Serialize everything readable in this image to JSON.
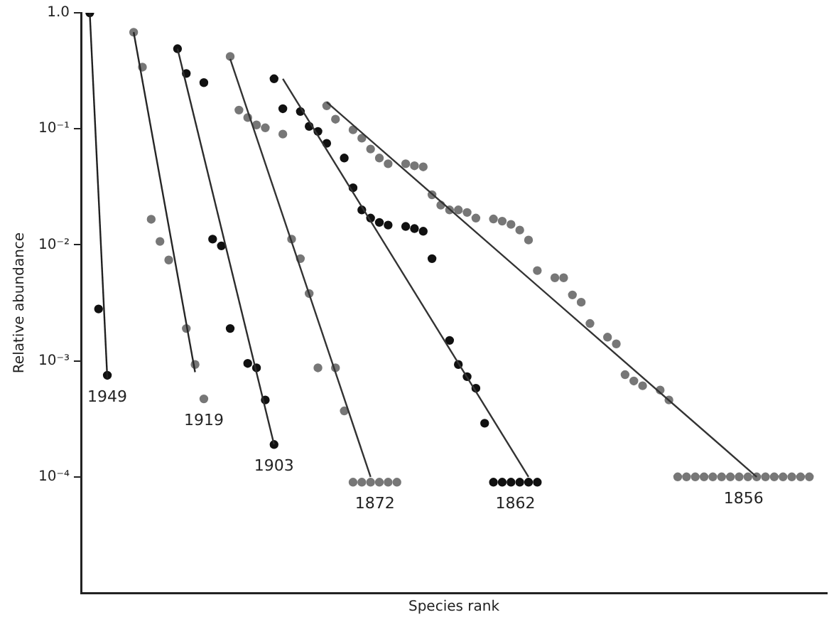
{
  "chart_data": {
    "type": "scatter",
    "xlabel": "Species rank",
    "ylabel": "Relative abundance",
    "log": true,
    "grid": false,
    "legend": false,
    "tick_labels": "y",
    "marker": "circle",
    "ylim": [
      1e-05,
      1
    ],
    "yticks": [
      {
        "value": 0.0001,
        "label": "10⁻⁴"
      },
      {
        "value": 0.001,
        "label": "10⁻³"
      },
      {
        "value": 0.01,
        "label": "10⁻²"
      },
      {
        "value": 0.1,
        "label": "10⁻¹"
      },
      {
        "value": 1,
        "label": "1.0"
      }
    ],
    "categories": [
      null,
      null,
      null,
      null,
      null,
      null,
      null,
      null,
      null,
      null,
      null,
      null,
      null,
      null,
      null,
      null,
      null,
      null,
      null,
      null,
      null,
      null,
      null,
      null,
      null,
      null,
      null,
      null,
      null,
      null,
      null,
      null,
      null,
      null,
      null,
      null,
      null,
      null,
      null,
      null,
      null,
      null,
      null,
      null,
      null,
      null,
      null,
      null,
      null,
      null,
      null,
      null,
      null,
      null,
      null,
      null,
      null,
      null,
      null,
      null,
      null,
      null,
      null,
      null,
      null,
      null,
      null,
      null,
      null,
      null,
      null,
      null,
      null,
      null,
      null,
      null,
      null,
      null,
      null,
      null,
      null,
      null,
      null,
      null,
      null,
      null
    ],
    "series": [
      {
        "name": "1949",
        "color": "#111111",
        "values": [
          null,
          1.0,
          0.0028,
          0.00075,
          null,
          null,
          null,
          null,
          null,
          null,
          null,
          null,
          null,
          null,
          null,
          null,
          null,
          null,
          null,
          null,
          null,
          null,
          null,
          null,
          null,
          null,
          null,
          null,
          null,
          null,
          null,
          null,
          null,
          null,
          null,
          null,
          null,
          null,
          null,
          null,
          null,
          null,
          null,
          null,
          null,
          null,
          null,
          null,
          null,
          null,
          null,
          null,
          null,
          null,
          null,
          null,
          null,
          null,
          null,
          null,
          null,
          null,
          null,
          null,
          null,
          null,
          null,
          null,
          null,
          null,
          null,
          null,
          null,
          null,
          null,
          null,
          null,
          null,
          null,
          null,
          null,
          null,
          null,
          null,
          null,
          null
        ]
      },
      {
        "type": "line",
        "color": "#202020",
        "marker": "none",
        "values": [
          null,
          1.0,
          null,
          0.0007,
          null,
          null,
          null,
          null,
          null,
          null,
          null,
          null,
          null,
          null,
          null,
          null,
          null,
          null,
          null,
          null,
          null,
          null,
          null,
          null,
          null,
          null,
          null,
          null,
          null,
          null,
          null,
          null,
          null,
          null,
          null,
          null,
          null,
          null,
          null,
          null,
          null,
          null,
          null,
          null,
          null,
          null,
          null,
          null,
          null,
          null,
          null,
          null,
          null,
          null,
          null,
          null,
          null,
          null,
          null,
          null,
          null,
          null,
          null,
          null,
          null,
          null,
          null,
          null,
          null,
          null,
          null,
          null,
          null,
          null,
          null,
          null,
          null,
          null,
          null,
          null,
          null,
          null,
          null,
          null,
          null,
          null
        ]
      },
      {
        "name": "1919",
        "color": "#777777",
        "values": [
          null,
          null,
          null,
          null,
          null,
          null,
          0.68,
          0.34,
          0.0166,
          0.0107,
          0.0074,
          null,
          0.0019,
          0.00093,
          0.00047,
          null,
          null,
          null,
          null,
          null,
          null,
          null,
          null,
          null,
          null,
          null,
          null,
          null,
          null,
          null,
          null,
          null,
          null,
          null,
          null,
          null,
          null,
          null,
          null,
          null,
          null,
          null,
          null,
          null,
          null,
          null,
          null,
          null,
          null,
          null,
          null,
          null,
          null,
          null,
          null,
          null,
          null,
          null,
          null,
          null,
          null,
          null,
          null,
          null,
          null,
          null,
          null,
          null,
          null,
          null,
          null,
          null,
          null,
          null,
          null,
          null,
          null,
          null,
          null,
          null,
          null,
          null,
          null,
          null,
          null,
          null
        ]
      },
      {
        "type": "line",
        "color": "#262626",
        "marker": "none",
        "values": [
          null,
          null,
          null,
          null,
          null,
          null,
          0.68,
          null,
          null,
          null,
          null,
          null,
          null,
          0.0008,
          null,
          null,
          null,
          null,
          null,
          null,
          null,
          null,
          null,
          null,
          null,
          null,
          null,
          null,
          null,
          null,
          null,
          null,
          null,
          null,
          null,
          null,
          null,
          null,
          null,
          null,
          null,
          null,
          null,
          null,
          null,
          null,
          null,
          null,
          null,
          null,
          null,
          null,
          null,
          null,
          null,
          null,
          null,
          null,
          null,
          null,
          null,
          null,
          null,
          null,
          null,
          null,
          null,
          null,
          null,
          null,
          null,
          null,
          null,
          null,
          null,
          null,
          null,
          null,
          null,
          null,
          null,
          null,
          null,
          null,
          null,
          null
        ]
      },
      {
        "name": "1903",
        "color": "#111111",
        "values": [
          null,
          null,
          null,
          null,
          null,
          null,
          null,
          null,
          null,
          null,
          null,
          0.49,
          0.3,
          null,
          0.25,
          0.0112,
          0.0098,
          0.0019,
          null,
          0.00095,
          0.00087,
          0.00046,
          0.00019,
          null,
          null,
          null,
          null,
          null,
          null,
          null,
          null,
          null,
          null,
          null,
          null,
          null,
          null,
          null,
          null,
          null,
          null,
          null,
          null,
          null,
          null,
          null,
          null,
          null,
          null,
          null,
          null,
          null,
          null,
          null,
          null,
          null,
          null,
          null,
          null,
          null,
          null,
          null,
          null,
          null,
          null,
          null,
          null,
          null,
          null,
          null,
          null,
          null,
          null,
          null,
          null,
          null,
          null,
          null,
          null,
          null,
          null,
          null,
          null,
          null,
          null,
          null
        ]
      },
      {
        "type": "line",
        "color": "#2c2c2c",
        "marker": "none",
        "values": [
          null,
          null,
          null,
          null,
          null,
          null,
          null,
          null,
          null,
          null,
          null,
          0.49,
          null,
          null,
          null,
          null,
          null,
          null,
          null,
          null,
          null,
          null,
          0.00019,
          null,
          null,
          null,
          null,
          null,
          null,
          null,
          null,
          null,
          null,
          null,
          null,
          null,
          null,
          null,
          null,
          null,
          null,
          null,
          null,
          null,
          null,
          null,
          null,
          null,
          null,
          null,
          null,
          null,
          null,
          null,
          null,
          null,
          null,
          null,
          null,
          null,
          null,
          null,
          null,
          null,
          null,
          null,
          null,
          null,
          null,
          null,
          null,
          null,
          null,
          null,
          null,
          null,
          null,
          null,
          null,
          null,
          null,
          null,
          null,
          null,
          null,
          null
        ]
      },
      {
        "name": "1872",
        "color": "#777777",
        "values": [
          null,
          null,
          null,
          null,
          null,
          null,
          null,
          null,
          null,
          null,
          null,
          null,
          null,
          null,
          null,
          null,
          null,
          0.42,
          0.145,
          0.125,
          0.108,
          0.102,
          null,
          0.09,
          0.0112,
          0.0076,
          0.0038,
          0.00087,
          null,
          0.00087,
          0.00037,
          9e-05,
          9e-05,
          9e-05,
          9e-05,
          9e-05,
          9e-05,
          null,
          null,
          null,
          null,
          null,
          null,
          null,
          null,
          null,
          null,
          null,
          null,
          null,
          null,
          null,
          null,
          null,
          null,
          null,
          null,
          null,
          null,
          null,
          null,
          null,
          null,
          null,
          null,
          null,
          null,
          null,
          null,
          null,
          null,
          null,
          null,
          null,
          null,
          null,
          null,
          null,
          null,
          null,
          null,
          null,
          null,
          null,
          null,
          null
        ]
      },
      {
        "type": "line",
        "color": "#333333",
        "marker": "none",
        "values": [
          null,
          null,
          null,
          null,
          null,
          null,
          null,
          null,
          null,
          null,
          null,
          null,
          null,
          null,
          null,
          null,
          null,
          0.4,
          null,
          null,
          null,
          null,
          null,
          null,
          null,
          null,
          null,
          null,
          null,
          null,
          null,
          null,
          null,
          0.0001,
          null,
          null,
          null,
          null,
          null,
          null,
          null,
          null,
          null,
          null,
          null,
          null,
          null,
          null,
          null,
          null,
          null,
          null,
          null,
          null,
          null,
          null,
          null,
          null,
          null,
          null,
          null,
          null,
          null,
          null,
          null,
          null,
          null,
          null,
          null,
          null,
          null,
          null,
          null,
          null,
          null,
          null,
          null,
          null,
          null,
          null,
          null,
          null,
          null,
          null,
          null,
          null
        ]
      },
      {
        "name": "1862",
        "color": "#111111",
        "values": [
          null,
          null,
          null,
          null,
          null,
          null,
          null,
          null,
          null,
          null,
          null,
          null,
          null,
          null,
          null,
          null,
          null,
          null,
          null,
          null,
          null,
          null,
          0.27,
          0.149,
          null,
          0.141,
          0.105,
          0.095,
          0.075,
          null,
          0.056,
          0.031,
          0.02,
          0.017,
          0.0156,
          0.0148,
          null,
          0.0144,
          0.0138,
          0.0131,
          0.0076,
          null,
          0.0015,
          0.00093,
          0.00073,
          0.00058,
          0.00029,
          9e-05,
          9e-05,
          9e-05,
          9e-05,
          9e-05,
          9e-05,
          null,
          null,
          null,
          null,
          null,
          null,
          null,
          null,
          null,
          null,
          null,
          null,
          null,
          null,
          null,
          null,
          null,
          null,
          null,
          null,
          null,
          null,
          null,
          null,
          null,
          null,
          null,
          null,
          null,
          null,
          null,
          null,
          null
        ]
      },
      {
        "type": "line",
        "color": "#333333",
        "marker": "none",
        "values": [
          null,
          null,
          null,
          null,
          null,
          null,
          null,
          null,
          null,
          null,
          null,
          null,
          null,
          null,
          null,
          null,
          null,
          null,
          null,
          null,
          null,
          null,
          null,
          0.27,
          null,
          null,
          null,
          null,
          null,
          null,
          null,
          null,
          null,
          null,
          null,
          null,
          null,
          null,
          null,
          null,
          null,
          null,
          null,
          null,
          null,
          null,
          null,
          null,
          null,
          null,
          null,
          0.0001,
          null,
          null,
          null,
          null,
          null,
          null,
          null,
          null,
          null,
          null,
          null,
          null,
          null,
          null,
          null,
          null,
          null,
          null,
          null,
          null,
          null,
          null,
          null,
          null,
          null,
          null,
          null,
          null,
          null,
          null,
          null,
          null,
          null,
          null
        ]
      },
      {
        "name": "1856",
        "color": "#777777",
        "values": [
          null,
          null,
          null,
          null,
          null,
          null,
          null,
          null,
          null,
          null,
          null,
          null,
          null,
          null,
          null,
          null,
          null,
          null,
          null,
          null,
          null,
          null,
          null,
          null,
          null,
          null,
          null,
          null,
          0.158,
          0.121,
          null,
          0.098,
          0.083,
          0.067,
          0.056,
          0.05,
          null,
          0.05,
          0.048,
          0.047,
          0.027,
          0.022,
          0.02,
          0.02,
          0.019,
          0.017,
          null,
          0.0167,
          0.016,
          0.015,
          0.0134,
          0.011,
          0.006,
          null,
          0.0052,
          0.0052,
          0.0037,
          0.0032,
          0.0021,
          null,
          0.0016,
          0.0014,
          0.00076,
          0.00067,
          0.00061,
          null,
          0.00056,
          0.00046,
          0.0001,
          0.0001,
          0.0001,
          0.0001,
          0.0001,
          0.0001,
          0.0001,
          0.0001,
          0.0001,
          0.0001,
          0.0001,
          0.0001,
          0.0001,
          0.0001,
          0.0001,
          0.0001,
          null,
          null
        ]
      },
      {
        "type": "line",
        "color": "#333333",
        "marker": "none",
        "values": [
          null,
          null,
          null,
          null,
          null,
          null,
          null,
          null,
          null,
          null,
          null,
          null,
          null,
          null,
          null,
          null,
          null,
          null,
          null,
          null,
          null,
          null,
          null,
          null,
          null,
          null,
          null,
          null,
          0.17,
          null,
          null,
          null,
          null,
          null,
          null,
          null,
          null,
          null,
          null,
          null,
          null,
          null,
          null,
          null,
          null,
          null,
          null,
          null,
          null,
          null,
          null,
          null,
          null,
          null,
          null,
          null,
          null,
          null,
          null,
          null,
          null,
          null,
          null,
          null,
          null,
          null,
          null,
          null,
          null,
          null,
          null,
          null,
          null,
          null,
          null,
          null,
          null,
          0.0001,
          null,
          null,
          null,
          null,
          null,
          null,
          null,
          null
        ]
      }
    ]
  }
}
